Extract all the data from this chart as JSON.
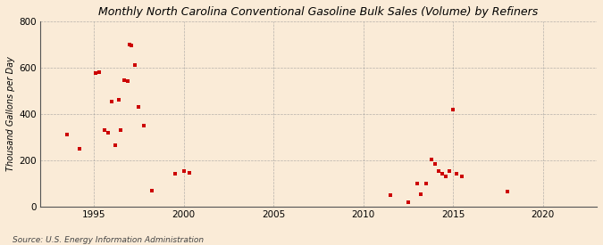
{
  "title": "Monthly North Carolina Conventional Gasoline Bulk Sales (Volume) by Refiners",
  "ylabel": "Thousand Gallons per Day",
  "source": "Source: U.S. Energy Information Administration",
  "background_color": "#faebd7",
  "plot_background_color": "#faebd7",
  "marker_color": "#cc0000",
  "marker_size": 3,
  "xlim": [
    1992,
    2023
  ],
  "ylim": [
    0,
    800
  ],
  "yticks": [
    0,
    200,
    400,
    600,
    800
  ],
  "xticks": [
    1995,
    2000,
    2005,
    2010,
    2015,
    2020
  ],
  "x": [
    1993.5,
    1994.2,
    1995.1,
    1995.3,
    1995.6,
    1995.8,
    1996.0,
    1996.2,
    1996.4,
    1996.5,
    1996.7,
    1996.9,
    1997.0,
    1997.1,
    1997.3,
    1997.5,
    1997.8,
    1998.2,
    1999.5,
    2000.0,
    2000.3,
    2011.5,
    2012.5,
    2013.0,
    2013.2,
    2013.5,
    2013.8,
    2014.0,
    2014.2,
    2014.4,
    2014.6,
    2014.8,
    2015.0,
    2015.2,
    2015.5,
    2018.0
  ],
  "y": [
    310,
    250,
    575,
    580,
    330,
    320,
    455,
    265,
    460,
    330,
    545,
    540,
    700,
    695,
    610,
    430,
    350,
    70,
    140,
    155,
    145,
    50,
    20,
    100,
    55,
    100,
    205,
    185,
    155,
    140,
    130,
    155,
    420,
    140,
    130,
    65
  ],
  "title_fontsize": 9,
  "tick_fontsize": 7.5,
  "ylabel_fontsize": 7,
  "source_fontsize": 6.5
}
